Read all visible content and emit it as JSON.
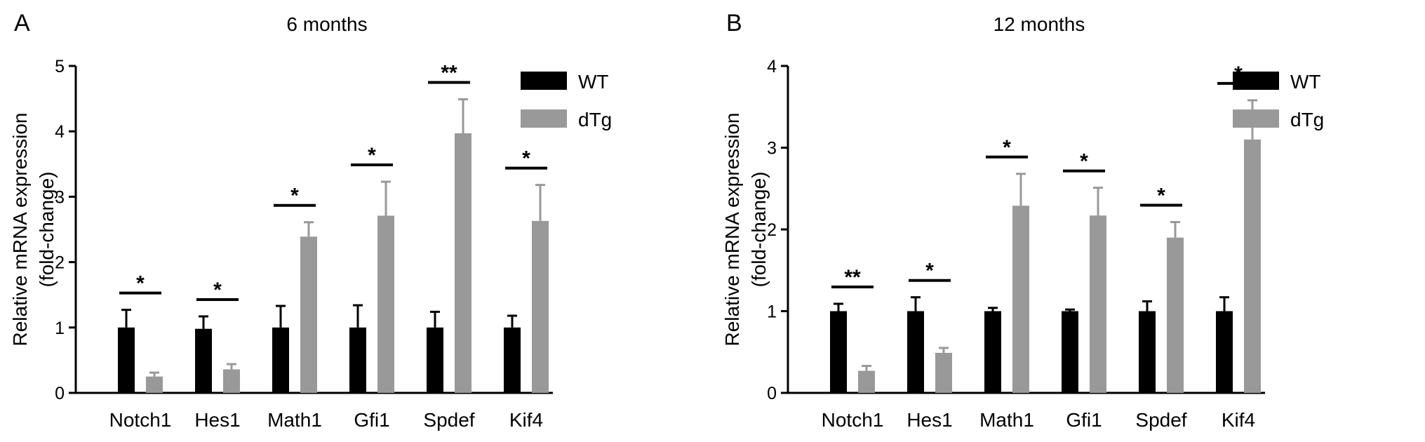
{
  "chart_data": [
    {
      "panel_label": "A",
      "type": "bar",
      "title": "6 months",
      "xlabel": "",
      "ylabel": "Relative mRNA expression",
      "ylabel_line2": "(fold-change)",
      "ylim": [
        0,
        5
      ],
      "yticks": [
        "0",
        "1",
        "2",
        "3",
        "4",
        "5"
      ],
      "categories": [
        "Notch1",
        "Hes1",
        "Math1",
        "Gfi1",
        "Spdef",
        "Kif4"
      ],
      "series": [
        {
          "name": "WT",
          "color": "#000000",
          "values": [
            1.0,
            0.98,
            1.0,
            1.0,
            1.0,
            1.0
          ],
          "errors": [
            0.27,
            0.19,
            0.33,
            0.34,
            0.24,
            0.18
          ]
        },
        {
          "name": "dTg",
          "color": "#999999",
          "values": [
            0.25,
            0.36,
            2.39,
            2.71,
            3.97,
            2.63
          ],
          "errors": [
            0.06,
            0.08,
            0.22,
            0.52,
            0.52,
            0.55
          ]
        }
      ],
      "significance": [
        "*",
        "*",
        "*",
        "*",
        "**",
        "*"
      ],
      "grid": false,
      "legend_position": "top-right"
    },
    {
      "panel_label": "B",
      "type": "bar",
      "title": "12 months",
      "xlabel": "",
      "ylabel": "Relative mRNA expression",
      "ylabel_line2": "(fold-change)",
      "ylim": [
        0,
        4
      ],
      "yticks": [
        "0",
        "1",
        "2",
        "3",
        "4"
      ],
      "categories": [
        "Notch1",
        "Hes1",
        "Math1",
        "Gfi1",
        "Spdef",
        "Kif4"
      ],
      "series": [
        {
          "name": "WT",
          "color": "#000000",
          "values": [
            1.0,
            1.0,
            1.0,
            1.0,
            1.0,
            1.0
          ],
          "errors": [
            0.09,
            0.17,
            0.04,
            0.02,
            0.12,
            0.17
          ]
        },
        {
          "name": "dTg",
          "color": "#999999",
          "values": [
            0.27,
            0.49,
            2.29,
            2.17,
            1.9,
            3.1
          ],
          "errors": [
            0.06,
            0.06,
            0.39,
            0.34,
            0.19,
            0.48
          ]
        }
      ],
      "significance": [
        "**",
        "*",
        "*",
        "*",
        "*",
        "*"
      ],
      "grid": false,
      "legend_position": "top-right"
    }
  ]
}
